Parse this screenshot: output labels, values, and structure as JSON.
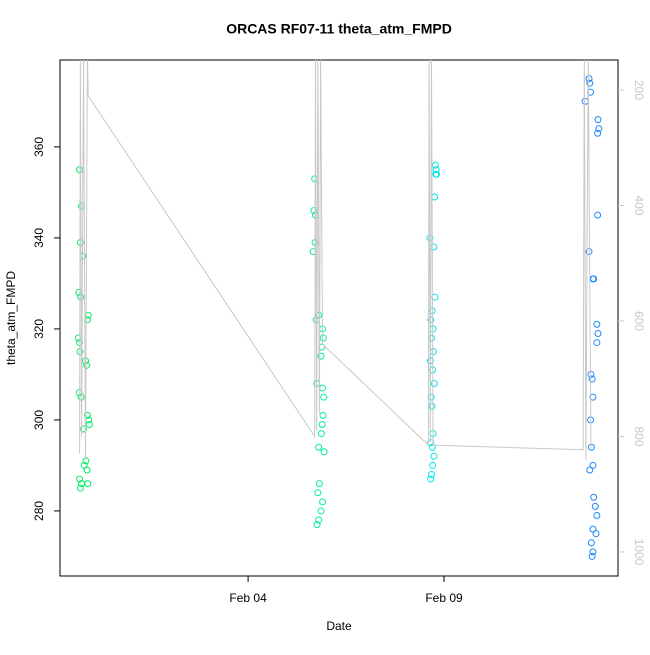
{
  "chart_data": {
    "type": "scatter",
    "title": "ORCAS RF07-11 theta_atm_FMPD",
    "xlabel": "Date",
    "ylabel": "theta_atm_FMPD",
    "xlim": [
      -0.8,
      13.44
    ],
    "xticks": [
      {
        "value": 4,
        "label": "Feb 04"
      },
      {
        "value": 9,
        "label": "Feb 09"
      }
    ],
    "ylim": [
      265.7,
      379.1
    ],
    "yticks": [
      280,
      300,
      320,
      340,
      360
    ],
    "y2lim": [
      1041.6,
      148
    ],
    "y2ticks": [
      200,
      400,
      600,
      800,
      1000
    ],
    "y2color": "#c8c8c8",
    "series": [
      {
        "color": "#00ee66",
        "x": [
          -0.3,
          -0.25,
          -0.28,
          -0.22,
          -0.32,
          -0.27,
          -0.1,
          -0.08,
          -0.33,
          -0.3,
          -0.29,
          -0.15,
          -0.12,
          -0.31,
          -0.26,
          -0.1,
          -0.07,
          -0.2,
          -0.05,
          -0.14,
          -0.18,
          -0.11,
          -0.3,
          -0.25,
          -0.09,
          -0.28
        ],
        "values": [
          355,
          347,
          339,
          336,
          328,
          327,
          322,
          323,
          318,
          317,
          315,
          313,
          312,
          306,
          305,
          301,
          300,
          298,
          299,
          291,
          290,
          289,
          287,
          286,
          286,
          285
        ]
      },
      {
        "color": "#00f0a0",
        "x": [
          5.7,
          5.68,
          5.72,
          5.71,
          5.66,
          5.74,
          5.8,
          5.9,
          5.92,
          5.88,
          5.86,
          5.75,
          5.9,
          5.93,
          5.91,
          5.89,
          5.87,
          5.8,
          5.94,
          5.82,
          5.78,
          5.9,
          5.86,
          5.8,
          5.76
        ],
        "values": [
          353,
          346,
          345,
          339,
          337,
          322,
          323,
          320,
          318,
          316,
          314,
          308,
          307,
          305,
          301,
          299,
          297,
          294,
          293,
          286,
          284,
          282,
          280,
          278,
          277
        ]
      },
      {
        "color": "#00e8e8",
        "x": [
          8.78,
          8.8,
          8.79,
          8.81,
          8.76,
          8.64,
          8.74,
          8.77,
          8.7,
          8.66,
          8.72,
          8.68,
          8.73,
          8.65,
          8.71,
          8.75,
          8.67,
          8.69,
          8.72,
          8.66,
          8.7,
          8.74,
          8.71,
          8.68,
          8.66
        ],
        "values": [
          356,
          355,
          354,
          354,
          349,
          340,
          338,
          327,
          324,
          322,
          320,
          318,
          315,
          313,
          311,
          308,
          305,
          303,
          297,
          295,
          294,
          292,
          290,
          288,
          287
        ]
      },
      {
        "color": "#1e88ff",
        "x": [
          12.7,
          12.72,
          12.6,
          12.74,
          12.93,
          12.95,
          12.92,
          12.92,
          12.7,
          12.82,
          12.8,
          12.9,
          12.93,
          12.9,
          12.75,
          12.78,
          12.8,
          12.74,
          12.76,
          12.8,
          12.72,
          12.82,
          12.86,
          12.9,
          12.8,
          12.88,
          12.76,
          12.8,
          12.78
        ],
        "values": [
          375,
          374,
          370,
          372,
          366,
          364,
          363,
          345,
          337,
          331,
          331,
          321,
          319,
          317,
          310,
          309,
          305,
          300,
          294,
          290,
          289,
          283,
          281,
          279,
          276,
          275,
          273,
          271,
          270
        ]
      },
      {
        "color": "#c8c8c8",
        "axis": "y2",
        "line": true,
        "x": [
          -0.3,
          -0.28,
          -0.25,
          -0.2,
          -0.15,
          -0.1,
          -0.08,
          5.7,
          5.72,
          5.75,
          5.78,
          5.82,
          5.85,
          5.9,
          8.6,
          8.62,
          8.65,
          8.68,
          8.72,
          12.55,
          12.58,
          12.62,
          12.68,
          12.75
        ],
        "values": [
          830,
          140,
          800,
          140,
          840,
          140,
          210,
          800,
          140,
          790,
          140,
          760,
          140,
          640,
          815,
          140,
          810,
          140,
          815,
          823,
          140,
          840,
          140,
          820
        ]
      }
    ]
  }
}
